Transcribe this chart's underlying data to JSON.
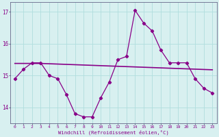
{
  "x": [
    0,
    1,
    2,
    3,
    4,
    5,
    6,
    7,
    8,
    9,
    10,
    11,
    12,
    13,
    14,
    15,
    16,
    17,
    18,
    19,
    20,
    21,
    22,
    23
  ],
  "windchill": [
    14.9,
    15.2,
    15.4,
    15.4,
    15.0,
    14.9,
    14.4,
    13.8,
    13.7,
    13.7,
    14.3,
    14.8,
    15.5,
    15.6,
    17.05,
    16.65,
    16.4,
    15.8,
    15.4,
    15.4,
    15.4,
    14.9,
    14.6,
    14.45
  ],
  "trend": [
    15.38,
    15.38,
    15.38,
    15.38,
    15.37,
    15.36,
    15.35,
    15.34,
    15.33,
    15.32,
    15.31,
    15.3,
    15.29,
    15.28,
    15.27,
    15.26,
    15.25,
    15.24,
    15.23,
    15.22,
    15.21,
    15.2,
    15.19,
    15.18
  ],
  "line_color": "#880088",
  "bg_color": "#d8f0f0",
  "grid_color": "#b0dede",
  "ylim_min": 13.5,
  "ylim_max": 17.3,
  "xlabel": "Windchill (Refroidissement éolien,°C)",
  "yticks": [
    14,
    15,
    16,
    17
  ],
  "xticks": [
    0,
    1,
    2,
    3,
    4,
    5,
    6,
    7,
    8,
    9,
    10,
    11,
    12,
    13,
    14,
    15,
    16,
    17,
    18,
    19,
    20,
    21,
    22,
    23
  ]
}
